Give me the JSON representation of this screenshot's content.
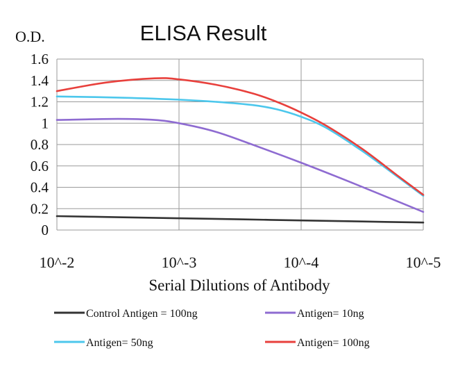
{
  "chart_data": {
    "type": "line",
    "title": "ELISA Result",
    "ylabel": "O.D.",
    "xlabel": "Serial Dilutions of Antibody",
    "x": [
      "10^-2",
      "10^-3",
      "10^-4",
      "10^-5"
    ],
    "xlim": [
      0,
      3
    ],
    "ylim": [
      0,
      1.6
    ],
    "yticks": [
      "0",
      "0.2",
      "0.4",
      "0.6",
      "0.8",
      "1",
      "1.2",
      "1.4",
      "1.6"
    ],
    "grid": true,
    "legend_position": "bottom",
    "series": [
      {
        "name": "Control Antigen = 100ng",
        "color": "#333333",
        "x": [
          0,
          0.5,
          1,
          1.5,
          2,
          2.5,
          3
        ],
        "values": [
          0.13,
          0.12,
          0.11,
          0.1,
          0.09,
          0.08,
          0.07
        ]
      },
      {
        "name": "Antigen= 10ng",
        "color": "#8e6bd1",
        "x": [
          0,
          0.5,
          0.8,
          1,
          1.3,
          1.6,
          2,
          2.4,
          2.7,
          3
        ],
        "values": [
          1.03,
          1.04,
          1.03,
          1.0,
          0.92,
          0.8,
          0.63,
          0.45,
          0.31,
          0.17
        ]
      },
      {
        "name": "Antigen= 50ng",
        "color": "#4cc7ec",
        "x": [
          0,
          0.5,
          1,
          1.3,
          1.6,
          1.8,
          2,
          2.2,
          2.5,
          2.8,
          3
        ],
        "values": [
          1.25,
          1.24,
          1.22,
          1.2,
          1.17,
          1.13,
          1.06,
          0.96,
          0.74,
          0.49,
          0.32
        ]
      },
      {
        "name": "Antigen= 100ng",
        "color": "#e8403c",
        "x": [
          0,
          0.4,
          0.8,
          1,
          1.3,
          1.6,
          1.8,
          2,
          2.2,
          2.5,
          2.8,
          3
        ],
        "values": [
          1.3,
          1.38,
          1.42,
          1.41,
          1.36,
          1.28,
          1.2,
          1.1,
          0.98,
          0.76,
          0.5,
          0.33
        ]
      }
    ]
  }
}
